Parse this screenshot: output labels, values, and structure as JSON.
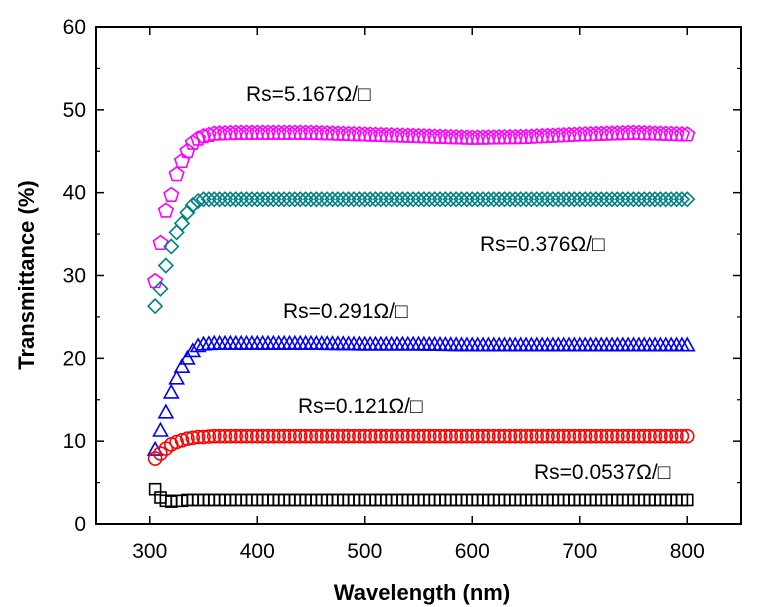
{
  "chart_data": {
    "type": "scatter",
    "title": "",
    "xlabel": "Wavelength (nm)",
    "ylabel": "Transmittance (%)",
    "xlim": [
      250,
      850
    ],
    "ylim": [
      0,
      60
    ],
    "xticks": [
      300,
      400,
      500,
      600,
      700,
      800
    ],
    "yticks": [
      0,
      10,
      20,
      30,
      40,
      50,
      60
    ],
    "grid": false,
    "x": [
      305,
      310,
      315,
      320,
      325,
      330,
      335,
      340,
      345,
      350,
      360,
      380,
      400,
      450,
      500,
      550,
      600,
      650,
      700,
      750,
      800
    ],
    "series": [
      {
        "marker": "pentagon",
        "color": "#ff00ff",
        "values": [
          29.3,
          33.9,
          37.8,
          39.7,
          42.2,
          43.8,
          45.0,
          46.0,
          46.5,
          46.8,
          47.1,
          47.2,
          47.2,
          47.2,
          47.0,
          46.8,
          46.6,
          46.7,
          47.0,
          47.2,
          47.0
        ]
      },
      {
        "marker": "diamond",
        "color": "#008080",
        "values": [
          26.3,
          28.4,
          31.2,
          33.5,
          35.2,
          36.3,
          37.6,
          38.5,
          39.0,
          39.2,
          39.2,
          39.2,
          39.2,
          39.2,
          39.2,
          39.2,
          39.2,
          39.2,
          39.2,
          39.2,
          39.2
        ]
      },
      {
        "marker": "triangle",
        "color": "#0000ff",
        "values": [
          9.0,
          11.3,
          13.5,
          15.9,
          17.6,
          19.0,
          20.0,
          20.9,
          21.5,
          21.7,
          21.8,
          21.8,
          21.8,
          21.8,
          21.7,
          21.7,
          21.6,
          21.6,
          21.6,
          21.6,
          21.6
        ]
      },
      {
        "marker": "circle",
        "color": "#ff0000",
        "values": [
          7.9,
          8.5,
          9.1,
          9.6,
          9.9,
          10.1,
          10.3,
          10.4,
          10.5,
          10.5,
          10.6,
          10.6,
          10.6,
          10.6,
          10.6,
          10.6,
          10.6,
          10.6,
          10.6,
          10.6,
          10.6
        ]
      },
      {
        "marker": "square",
        "color": "#000000",
        "values": [
          4.2,
          3.2,
          2.8,
          2.7,
          2.8,
          2.8,
          2.9,
          2.9,
          2.9,
          2.9,
          2.9,
          2.9,
          2.9,
          2.9,
          2.9,
          2.9,
          2.9,
          2.9,
          2.9,
          2.9,
          2.9
        ]
      }
    ],
    "annotations": [
      {
        "text": "Rs=5.167Ω/□"
      },
      {
        "text": "Rs=0.376Ω/□"
      },
      {
        "text": "Rs=0.291Ω/□"
      },
      {
        "text": "Rs=0.121Ω/□"
      },
      {
        "text": "Rs=0.0537Ω/□"
      }
    ]
  }
}
